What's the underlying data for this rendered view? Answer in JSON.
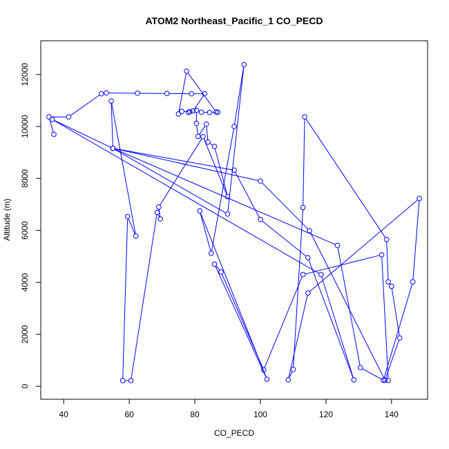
{
  "chart_data": {
    "type": "scatter",
    "title": "ATOM2 Northeast_Pacific_1 CO_PECD",
    "xlabel": "CO_PECD",
    "ylabel": "Altitude (m)",
    "xlim": [
      33,
      151
    ],
    "ylim": [
      -500,
      13300
    ],
    "xticks": [
      40,
      60,
      80,
      100,
      120,
      140
    ],
    "yticks": [
      0,
      2000,
      4000,
      6000,
      8000,
      10000,
      12000
    ],
    "x_tick_labels": [
      "40",
      "60",
      "80",
      "100",
      "120",
      "140"
    ],
    "y_tick_labels": [
      "0",
      "2000",
      "4000",
      "6000",
      "8000",
      "10000",
      "12000"
    ],
    "grid": false,
    "legend": "none",
    "series_color": "#0000ff",
    "connected": true,
    "marker": "open-circle",
    "series": [
      {
        "x": [
          37,
          35.5,
          41.5,
          51.5,
          53,
          62.5,
          71.5,
          79,
          83,
          79.5,
          78,
          78.5,
          76,
          75,
          77.5,
          86.5,
          87,
          84.5,
          82,
          80.5,
          80.5,
          81,
          83.5,
          84,
          86,
          90,
          82.5,
          69,
          69.5,
          68.5,
          60.5,
          58,
          59.5,
          62,
          54.5,
          55,
          100,
          115,
          138,
          142.5,
          140,
          139,
          138.5,
          113.5,
          113,
          110,
          108.5,
          114.5,
          148.5,
          146.5,
          137.5,
          130.5,
          123.5,
          55,
          92,
          100,
          114.5,
          128.5,
          118.5,
          36.5,
          55,
          90,
          95,
          92,
          85,
          81.5,
          102,
          86,
          88,
          101,
          113,
          137,
          139
        ],
        "y": [
          9700,
          10370,
          10370,
          11260,
          11290,
          11280,
          11270,
          11260,
          11260,
          10600,
          10540,
          10570,
          10580,
          10480,
          12130,
          10560,
          10550,
          10540,
          10550,
          10620,
          10120,
          9620,
          10090,
          9400,
          9230,
          7300,
          9610,
          6900,
          6440,
          6690,
          220,
          220,
          6530,
          5780,
          10980,
          9160,
          7900,
          5990,
          240,
          1860,
          3850,
          4020,
          5650,
          10370,
          6880,
          650,
          250,
          3590,
          7230,
          4020,
          230,
          720,
          5420,
          9160,
          8320,
          6420,
          4950,
          250,
          4300,
          10270,
          9160,
          6630,
          12380,
          10000,
          5120,
          6750,
          270,
          4700,
          4400,
          630,
          4300,
          5060,
          230
        ]
      }
    ]
  }
}
